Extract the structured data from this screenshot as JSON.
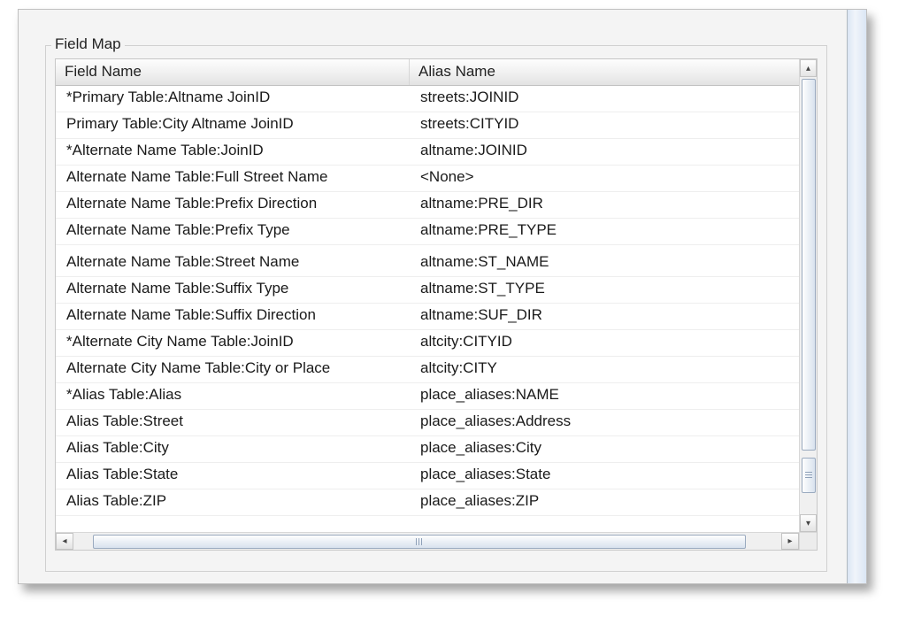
{
  "group": {
    "label": "Field Map"
  },
  "table": {
    "columns": {
      "field": "Field Name",
      "alias": "Alias Name"
    },
    "rows": [
      {
        "field": "*Primary Table:Altname JoinID",
        "alias": "streets:JOINID"
      },
      {
        "field": " Primary Table:City Altname JoinID",
        "alias": "streets:CITYID"
      },
      {
        "field": "*Alternate Name Table:JoinID",
        "alias": "altname:JOINID"
      },
      {
        "field": " Alternate Name Table:Full Street Name",
        "alias": "<None>"
      },
      {
        "field": " Alternate Name Table:Prefix Direction",
        "alias": "altname:PRE_DIR"
      },
      {
        "field": " Alternate Name Table:Prefix Type",
        "alias": "altname:PRE_TYPE"
      },
      {
        "field": " Alternate Name Table:Street Name",
        "alias": "altname:ST_NAME"
      },
      {
        "field": " Alternate Name Table:Suffix Type",
        "alias": "altname:ST_TYPE"
      },
      {
        "field": " Alternate Name Table:Suffix Direction",
        "alias": "altname:SUF_DIR"
      },
      {
        "field": "*Alternate City Name Table:JoinID",
        "alias": "altcity:CITYID"
      },
      {
        "field": " Alternate City Name Table:City or Place",
        "alias": "altcity:CITY"
      },
      {
        "field": "*Alias Table:Alias",
        "alias": "place_aliases:NAME"
      },
      {
        "field": " Alias Table:Street",
        "alias": "place_aliases:Address"
      },
      {
        "field": " Alias Table:City",
        "alias": "place_aliases:City"
      },
      {
        "field": " Alias Table:State",
        "alias": "place_aliases:State"
      },
      {
        "field": " Alias Table:ZIP",
        "alias": "place_aliases:ZIP"
      }
    ],
    "spacer_after_index": 5
  },
  "style": {
    "background": "#ffffff",
    "panel_bg": "#f4f4f4",
    "border": "#c8c8c8",
    "header_grad_top": "#fdfdfd",
    "header_grad_bot": "#e3e3e3",
    "row_border": "#eeeeee",
    "text_color": "#1a1a1a",
    "font_size_pt": 12,
    "scrollbar_thumb_border": "#9aaabf"
  }
}
